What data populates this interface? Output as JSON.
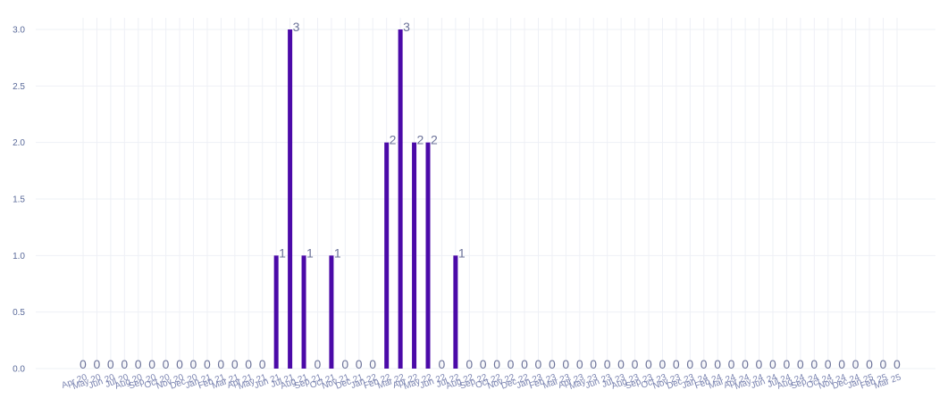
{
  "chart_data": {
    "type": "bar",
    "title": "",
    "xlabel": "",
    "ylabel": "",
    "ylim": [
      0,
      3
    ],
    "yticks": [
      "0.0",
      "0.5",
      "1.0",
      "1.5",
      "2.0",
      "2.5",
      "3.0"
    ],
    "grid": true,
    "legend": "none",
    "bar_color": "#4b0aa8",
    "categories": [
      "Apr 20",
      "May 20",
      "Jun 20",
      "Jul 20",
      "Aug 20",
      "Sep 20",
      "Oct 20",
      "Nov 20",
      "Dec 20",
      "Jan 21",
      "Feb 21",
      "Mar 21",
      "Apr 21",
      "May 21",
      "Jun 21",
      "Jul 21",
      "Aug 21",
      "Sep 21",
      "Oct 21",
      "Nov 21",
      "Dec 21",
      "Jan 22",
      "Feb 22",
      "Mar 22",
      "Apr 22",
      "May 22",
      "Jun 22",
      "Jul 22",
      "Aug 22",
      "Sep 22",
      "Oct 22",
      "Nov 22",
      "Dec 22",
      "Jan 23",
      "Feb 23",
      "Mar 23",
      "Apr 23",
      "May 23",
      "Jun 23",
      "Jul 23",
      "Aug 23",
      "Sep 23",
      "Oct 23",
      "Nov 23",
      "Dec 23",
      "Jan 24",
      "Feb 24",
      "Mar 24",
      "Apr 24",
      "May 24",
      "Jun 24",
      "Jul 24",
      "Aug 24",
      "Sep 24",
      "Oct 24",
      "Nov 24",
      "Dec 24",
      "Jan 25",
      "Feb 25",
      "Mar 25"
    ],
    "values": [
      0,
      0,
      0,
      0,
      0,
      0,
      0,
      0,
      0,
      0,
      0,
      0,
      0,
      0,
      1,
      3,
      1,
      0,
      1,
      0,
      0,
      0,
      2,
      3,
      2,
      2,
      0,
      1,
      0,
      0,
      0,
      0,
      0,
      0,
      0,
      0,
      0,
      0,
      0,
      0,
      0,
      0,
      0,
      0,
      0,
      0,
      0,
      0,
      0,
      0,
      0,
      0,
      0,
      0,
      0,
      0,
      0,
      0,
      0,
      0
    ]
  }
}
